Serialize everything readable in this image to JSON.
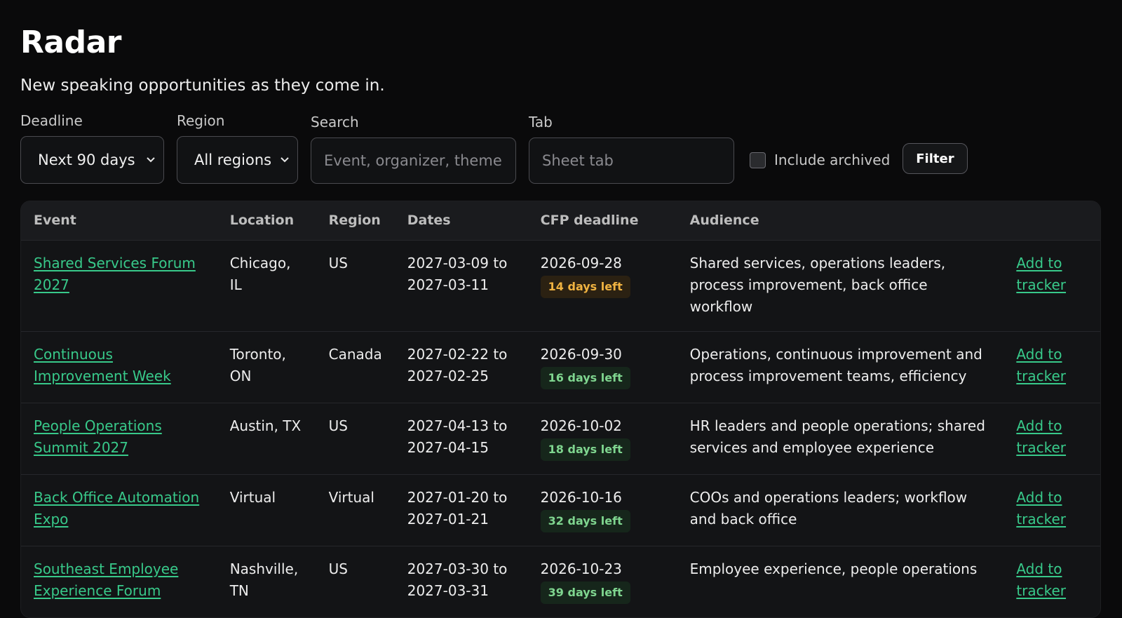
{
  "header": {
    "title": "Radar",
    "subtitle": "New speaking opportunities as they come in."
  },
  "filters": {
    "deadline": {
      "label": "Deadline",
      "value": "Next 90 days"
    },
    "region": {
      "label": "Region",
      "value": "All regions"
    },
    "search": {
      "label": "Search",
      "placeholder": "Event, organizer, theme"
    },
    "tab": {
      "label": "Tab",
      "placeholder": "Sheet tab"
    },
    "include_archived": {
      "label": "Include archived",
      "checked": false
    },
    "filter_button": "Filter"
  },
  "table": {
    "columns": [
      "Event",
      "Location",
      "Region",
      "Dates",
      "CFP deadline",
      "Audience",
      ""
    ],
    "rows": [
      {
        "event": "Shared Services Forum 2027",
        "location": "Chicago, IL",
        "region": "US",
        "dates": "2027-03-09 to 2027-03-11",
        "cfp_deadline": "2026-09-28",
        "days_left": "14 days left",
        "status": "warn",
        "audience": "Shared services, operations leaders, process improvement, back office workflow",
        "action": "Add to tracker"
      },
      {
        "event": "Continuous Improvement Week",
        "location": "Toronto, ON",
        "region": "Canada",
        "dates": "2027-02-22 to 2027-02-25",
        "cfp_deadline": "2026-09-30",
        "days_left": "16 days left",
        "status": "ok",
        "audience": "Operations, continuous improvement and process improvement teams, efficiency",
        "action": "Add to tracker"
      },
      {
        "event": "People Operations Summit 2027",
        "location": "Austin, TX",
        "region": "US",
        "dates": "2027-04-13 to 2027-04-15",
        "cfp_deadline": "2026-10-02",
        "days_left": "18 days left",
        "status": "ok",
        "audience": "HR leaders and people operations; shared services and employee experience",
        "action": "Add to tracker"
      },
      {
        "event": "Back Office Automation Expo",
        "location": "Virtual",
        "region": "Virtual",
        "dates": "2027-01-20 to 2027-01-21",
        "cfp_deadline": "2026-10-16",
        "days_left": "32 days left",
        "status": "ok",
        "audience": "COOs and operations leaders; workflow and back office",
        "action": "Add to tracker"
      },
      {
        "event": "Southeast Employee Experience Forum",
        "location": "Nashville, TN",
        "region": "US",
        "dates": "2027-03-30 to 2027-03-31",
        "cfp_deadline": "2026-10-23",
        "days_left": "39 days left",
        "status": "ok",
        "audience": "Employee experience, people operations",
        "action": "Add to tracker"
      }
    ]
  }
}
